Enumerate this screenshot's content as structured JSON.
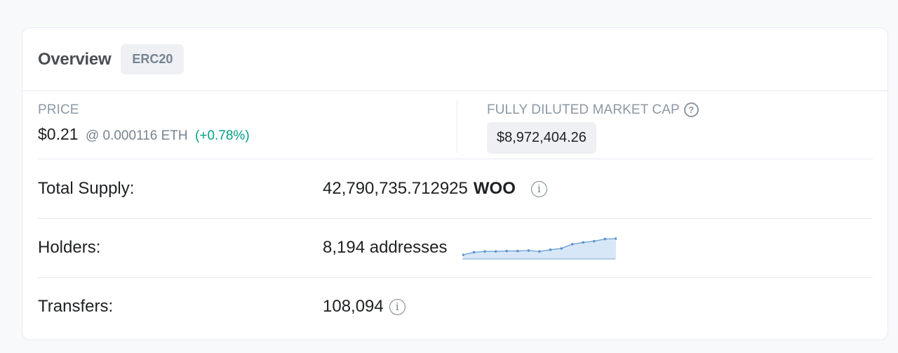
{
  "overview": {
    "title": "Overview",
    "badge": "ERC20"
  },
  "price": {
    "label": "PRICE",
    "value": "$0.21",
    "eth": "@ 0.000116 ETH",
    "change": "(+0.78%)",
    "change_color": "#00a186"
  },
  "market_cap": {
    "label": "FULLY DILUTED MARKET CAP",
    "help_icon": "?",
    "value": "$8,972,404.26"
  },
  "total_supply": {
    "label": "Total Supply:",
    "value": "42,790,735.712925",
    "symbol": "WOO",
    "info_icon": "i"
  },
  "holders": {
    "label": "Holders:",
    "value": "8,194 addresses",
    "sparkline_values": [
      8,
      14,
      16,
      16,
      17,
      17,
      18,
      16,
      20,
      23,
      33,
      37,
      40,
      45,
      46
    ]
  },
  "transfers": {
    "label": "Transfers:",
    "value": "108,094",
    "info_icon": "i"
  }
}
